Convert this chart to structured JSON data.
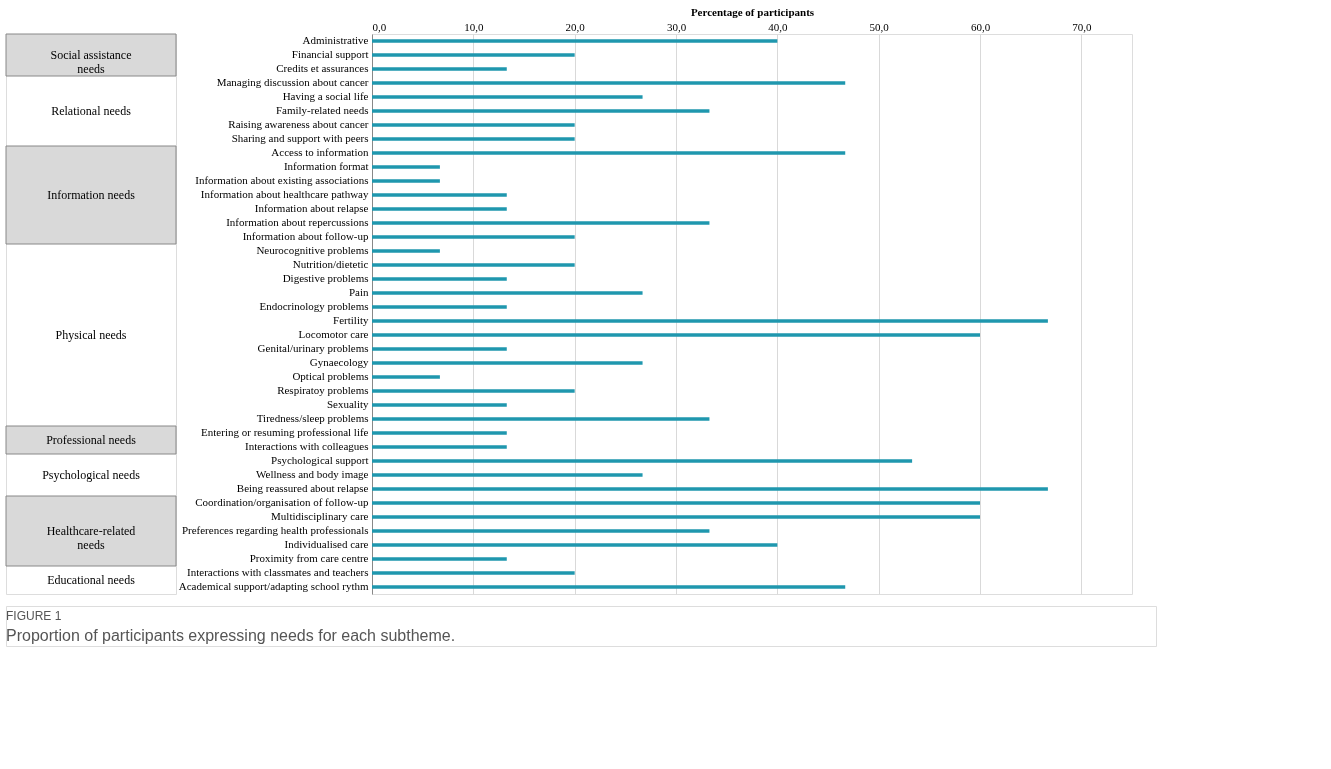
{
  "chart_data": {
    "type": "bar",
    "orientation": "horizontal",
    "xlabel": "Percentage of participants",
    "color": "#1f97ae",
    "grid": "x",
    "xlim": [
      0,
      75
    ],
    "xticks": [
      {
        "value": 0,
        "label": "0,0"
      },
      {
        "value": 10,
        "label": "10,0"
      },
      {
        "value": 20,
        "label": "20,0"
      },
      {
        "value": 30,
        "label": "30,0"
      },
      {
        "value": 40,
        "label": "40,0"
      },
      {
        "value": 50,
        "label": "50,0"
      },
      {
        "value": 60,
        "label": "60,0"
      },
      {
        "value": 70,
        "label": "70,0"
      }
    ],
    "categories": [
      "Administrative",
      "Financial support",
      "Credits et assurances",
      "Managing discussion about cancer",
      "Having a social life",
      "Family-related needs",
      "Raising awareness about cancer",
      "Sharing and support with peers",
      "Access to information",
      "Information format",
      "Information about existing associations",
      "Information about healthcare pathway",
      "Information about relapse",
      "Information about repercussions",
      "Information about follow-up",
      "Neurocognitive problems",
      "Nutrition/dietetic",
      "Digestive problems",
      "Pain",
      "Endocrinology problems",
      "Fertility",
      "Locomotor care",
      "Genital/urinary problems",
      "Gynaecology",
      "Optical problems",
      "Respiratoy problems",
      "Sexuality",
      "Tiredness/sleep problems",
      "Entering or resuming professional life",
      "Interactions with colleagues",
      "Psychological support",
      "Wellness and body image",
      "Being reassured about relapse",
      "Coordination/organisation of follow-up",
      "Multidisciplinary care",
      "Preferences regarding health professionals",
      "Individualised care",
      "Proximity from care centre",
      "Interactions with classmates and teachers",
      "Academical support/adapting school rythm"
    ],
    "values": [
      40,
      20,
      13.3,
      46.7,
      26.7,
      33.3,
      20,
      20,
      46.7,
      6.7,
      6.7,
      13.3,
      13.3,
      33.3,
      20,
      6.7,
      20,
      13.3,
      26.7,
      13.3,
      66.7,
      60,
      13.3,
      26.7,
      6.7,
      20,
      13.3,
      33.3,
      13.3,
      13.3,
      53.3,
      26.7,
      66.7,
      60,
      60,
      33.3,
      40,
      13.3,
      20,
      46.7
    ],
    "annotations": [
      "Social assistance needs",
      "Relational needs",
      "Information needs",
      "Physical needs",
      "Professional needs",
      "Psychological needs",
      "Healthcare-related needs",
      "Educational needs",
      "FIGURE 1",
      "Proportion of participants expressing needs for each subtheme."
    ]
  }
}
